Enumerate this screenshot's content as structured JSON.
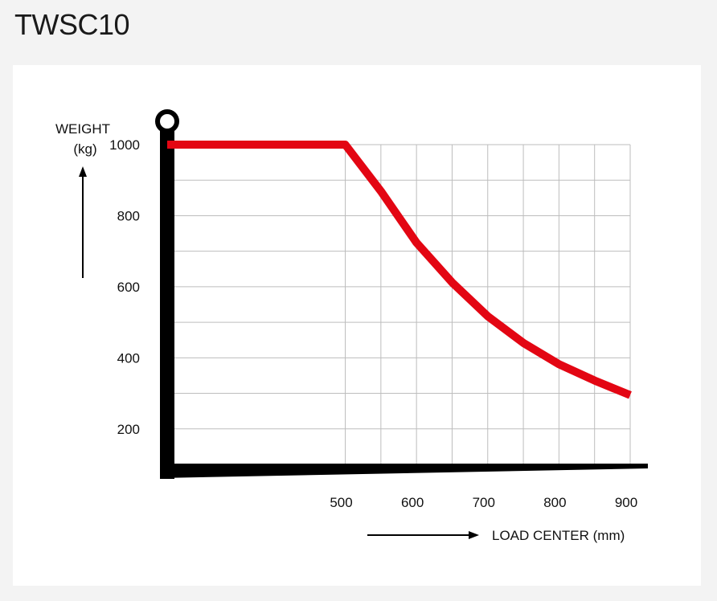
{
  "page": {
    "title": "TWSC10"
  },
  "chart_data": {
    "type": "line",
    "title": "",
    "xlabel": "LOAD CENTER (mm)",
    "ylabel": "WEIGHT",
    "ylabel_unit": "(kg)",
    "x_ticks": [
      500,
      600,
      700,
      800,
      900
    ],
    "y_ticks": [
      200,
      400,
      600,
      800,
      1000
    ],
    "xlim": [
      250,
      900
    ],
    "ylim": [
      100,
      1000
    ],
    "grid": true,
    "colors": {
      "curve": "#e30613",
      "axis": "#000000",
      "grid": "#bdbdbd"
    },
    "series": [
      {
        "name": "",
        "x": [
          250,
          300,
          350,
          400,
          450,
          500,
          550,
          600,
          650,
          700,
          750,
          800,
          850,
          900
        ],
        "y": [
          1000,
          1000,
          1000,
          1000,
          1000,
          1000,
          869,
          724,
          612,
          517,
          442,
          382,
          336,
          295
        ]
      }
    ]
  }
}
